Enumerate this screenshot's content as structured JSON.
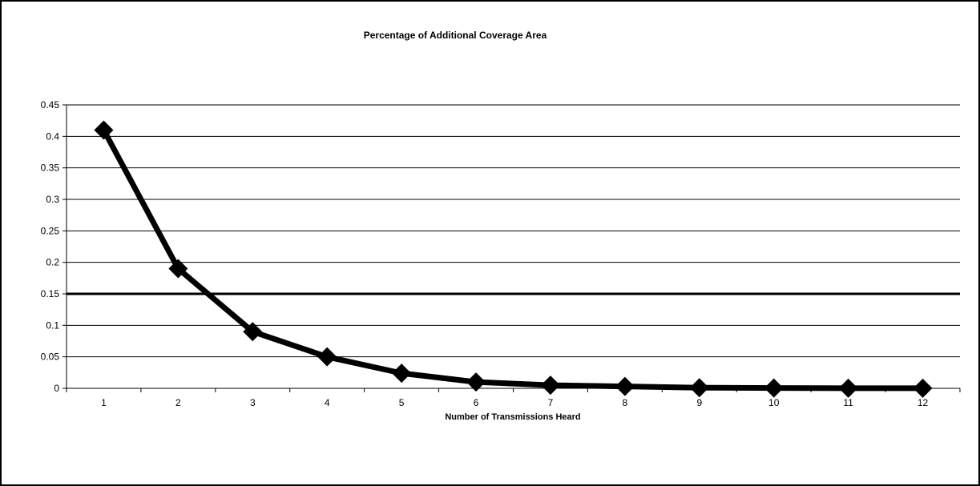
{
  "chart_data": {
    "type": "line",
    "title": "Percentage of Additional Coverage Area",
    "xlabel": "Number of Transmissions Heard",
    "ylabel": "",
    "categories": [
      "1",
      "2",
      "3",
      "4",
      "5",
      "6",
      "7",
      "8",
      "9",
      "10",
      "11",
      "12"
    ],
    "series": [
      {
        "values": [
          0.41,
          0.19,
          0.09,
          0.05,
          0.024,
          0.01,
          0.005,
          0.003,
          0.001,
          0.0005,
          0.0002,
          0.0001
        ]
      }
    ],
    "ylim": [
      0,
      0.45
    ],
    "yticks": [
      0,
      0.05,
      0.1,
      0.15,
      0.2,
      0.25,
      0.3,
      0.35,
      0.4,
      0.45
    ],
    "ytick_labels": [
      "0",
      "0.05",
      "0.1",
      "0.15",
      "0.2",
      "0.25",
      "0.3",
      "0.35",
      "0.4",
      "0.45"
    ],
    "grid": true,
    "legend": "none",
    "marker": "diamond",
    "colors": {
      "line": "#000000",
      "grid": "#000000",
      "background": "#ffffff"
    }
  }
}
